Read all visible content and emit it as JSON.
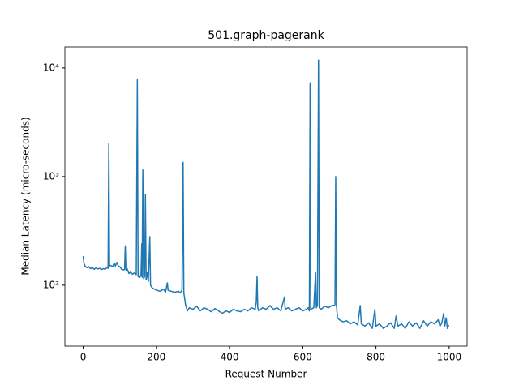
{
  "chart_data": {
    "type": "line",
    "title": "501.graph-pagerank",
    "x_label": "Request Number",
    "y_label": "Median Latency (micro-seconds)",
    "color": "#1f77b4",
    "yscale": "log",
    "xlim": [
      -50,
      1049
    ],
    "ylim": [
      27.5,
      15600
    ],
    "xticks": [
      0,
      200,
      400,
      600,
      800,
      1000
    ],
    "yticks": [
      {
        "value": 100,
        "label": "10²"
      },
      {
        "value": 1000,
        "label": "10³"
      },
      {
        "value": 10000,
        "label": "10⁴"
      }
    ],
    "x": [
      0,
      2,
      5,
      10,
      15,
      20,
      25,
      30,
      35,
      40,
      45,
      50,
      55,
      60,
      65,
      68,
      70,
      72,
      75,
      80,
      85,
      88,
      92,
      96,
      100,
      105,
      110,
      113,
      115,
      117,
      120,
      125,
      130,
      135,
      140,
      145,
      148,
      150,
      155,
      158,
      160,
      161,
      163,
      165,
      168,
      170,
      172,
      175,
      178,
      182,
      184,
      188,
      195,
      200,
      210,
      220,
      225,
      230,
      232,
      240,
      250,
      260,
      265,
      270,
      273,
      275,
      280,
      285,
      290,
      300,
      310,
      320,
      330,
      340,
      350,
      360,
      370,
      380,
      390,
      400,
      410,
      420,
      430,
      440,
      450,
      460,
      470,
      473,
      475,
      477,
      480,
      490,
      500,
      510,
      520,
      530,
      540,
      550,
      552,
      560,
      570,
      580,
      590,
      600,
      610,
      615,
      618,
      620,
      622,
      630,
      635,
      637,
      640,
      643,
      645,
      650,
      660,
      670,
      680,
      688,
      690,
      692,
      695,
      700,
      710,
      720,
      730,
      740,
      750,
      757,
      760,
      770,
      780,
      790,
      797,
      800,
      810,
      820,
      830,
      840,
      850,
      855,
      860,
      870,
      880,
      890,
      900,
      910,
      920,
      930,
      940,
      950,
      960,
      970,
      975,
      980,
      985,
      988,
      992,
      995,
      999
    ],
    "values": [
      185,
      160,
      150,
      145,
      148,
      142,
      146,
      140,
      144,
      141,
      143,
      139,
      142,
      140,
      145,
      143,
      2000,
      150,
      152,
      148,
      160,
      150,
      162,
      150,
      148,
      140,
      138,
      140,
      230,
      135,
      142,
      128,
      132,
      126,
      130,
      125,
      7800,
      120,
      118,
      125,
      240,
      118,
      1150,
      115,
      120,
      680,
      112,
      130,
      108,
      280,
      100,
      95,
      92,
      90,
      88,
      92,
      86,
      105,
      90,
      88,
      86,
      88,
      85,
      90,
      1350,
      85,
      65,
      58,
      62,
      60,
      64,
      58,
      62,
      60,
      57,
      61,
      58,
      55,
      58,
      56,
      60,
      58,
      57,
      60,
      58,
      62,
      60,
      70,
      120,
      62,
      58,
      62,
      60,
      65,
      60,
      62,
      58,
      78,
      60,
      62,
      58,
      60,
      62,
      58,
      60,
      62,
      58,
      7300,
      60,
      62,
      130,
      62,
      65,
      11800,
      62,
      60,
      64,
      62,
      65,
      66,
      1000,
      65,
      50,
      48,
      46,
      47,
      44,
      46,
      43,
      65,
      44,
      42,
      45,
      40,
      60,
      42,
      44,
      40,
      42,
      45,
      40,
      52,
      42,
      44,
      40,
      46,
      42,
      45,
      40,
      47,
      42,
      46,
      44,
      48,
      42,
      45,
      55,
      42,
      50,
      40,
      43
    ]
  }
}
